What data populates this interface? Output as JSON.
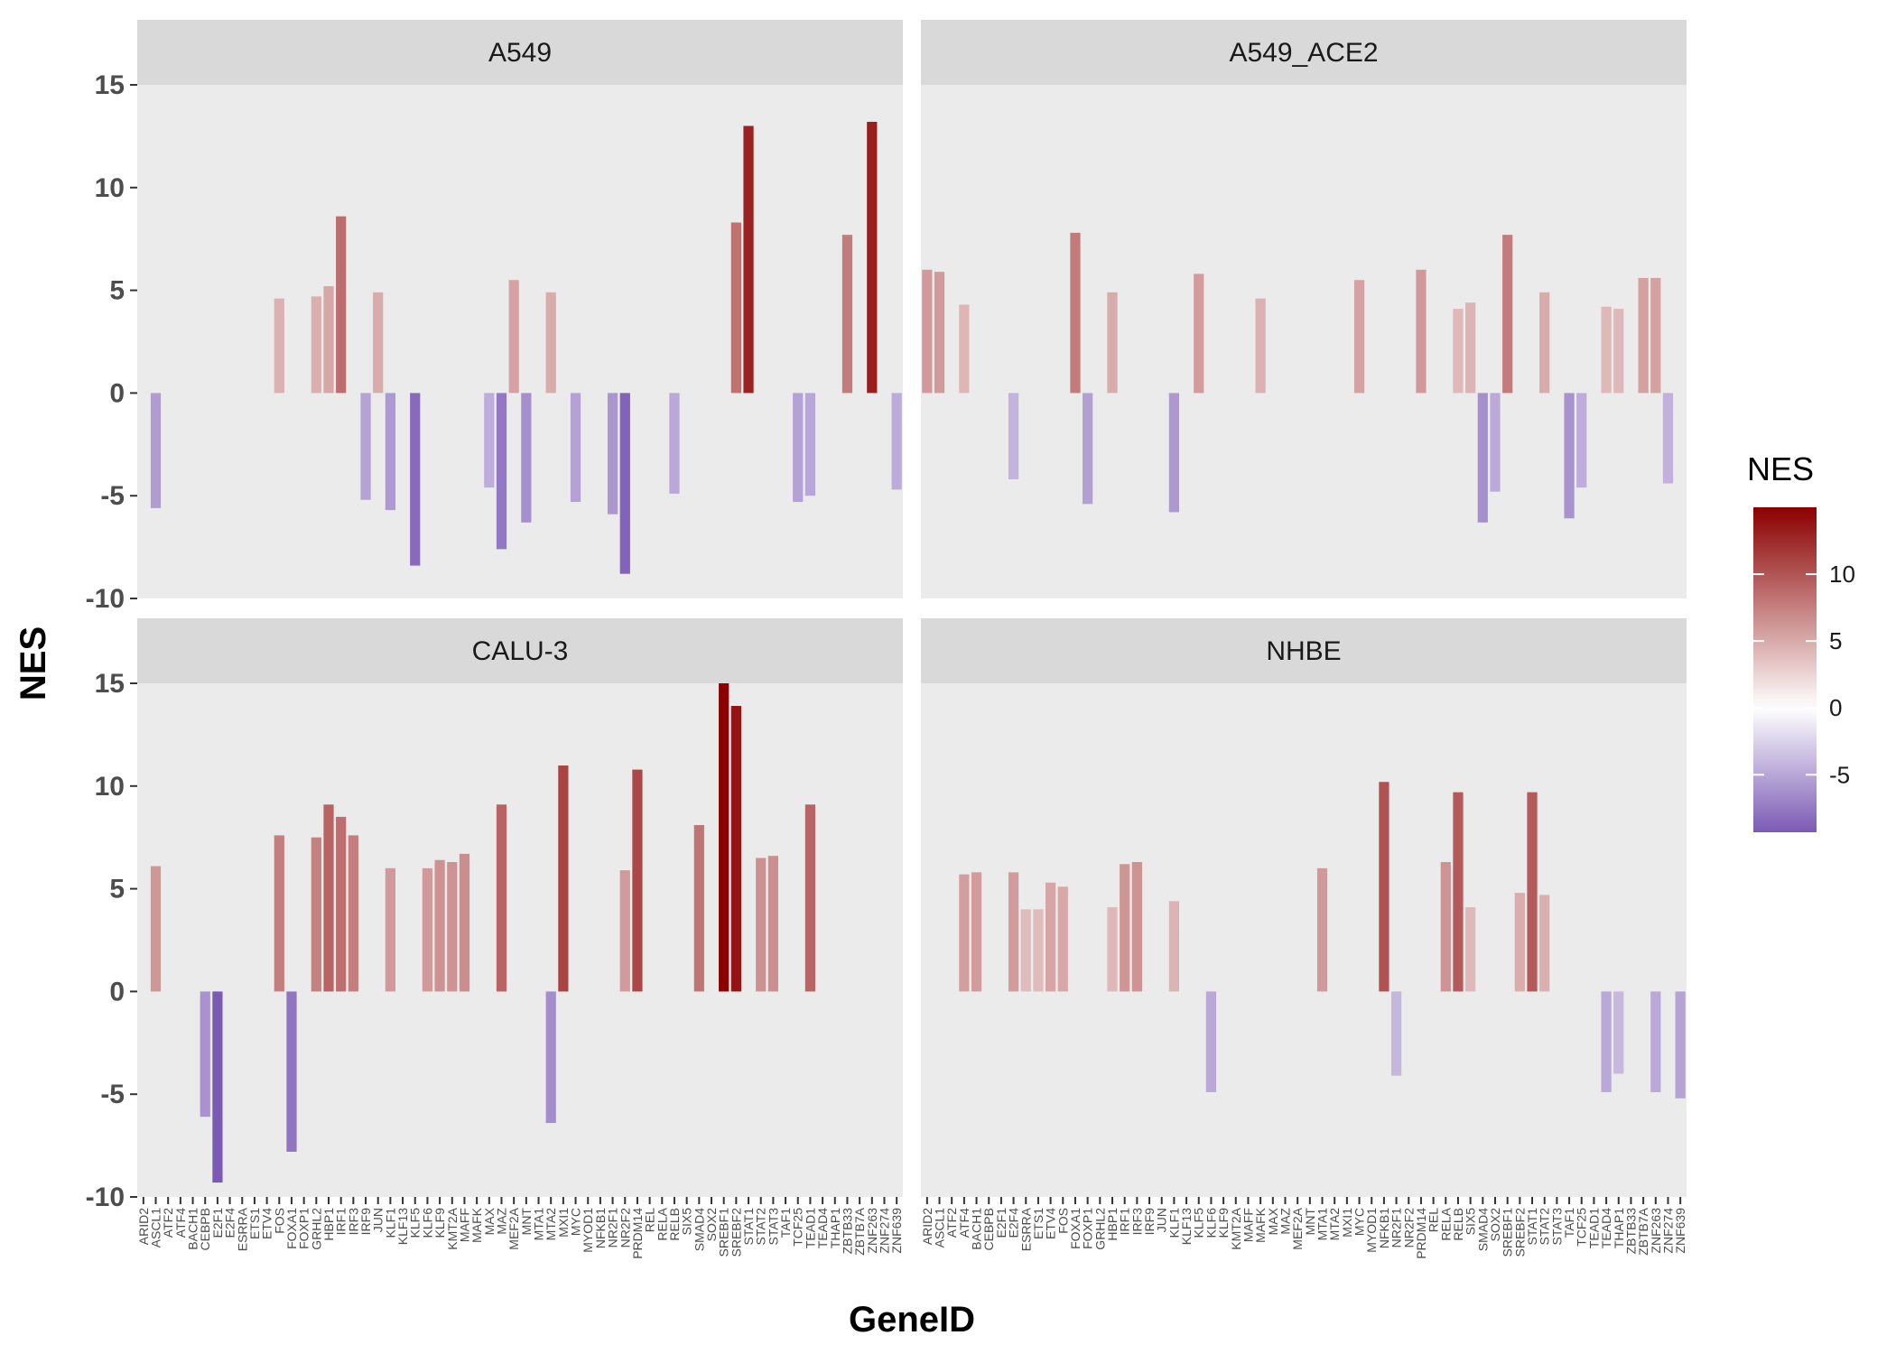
{
  "chart_data": {
    "type": "bar",
    "xlabel": "GeneID",
    "ylabel": "NES",
    "ylim": [
      -10,
      15
    ],
    "yticks": [
      15,
      10,
      5,
      0,
      -5,
      -10
    ],
    "ytick_labels": [
      "15",
      "10",
      "5",
      "0",
      "-5",
      "-10"
    ],
    "grid": false,
    "categories": [
      "ARID2",
      "ASCL1",
      "ATF2",
      "ATF4",
      "BACH1",
      "CEBPB",
      "E2F1",
      "E2F4",
      "ESRRA",
      "ETS1",
      "ETV4",
      "FOS",
      "FOXA1",
      "FOXP1",
      "GRHL2",
      "HBP1",
      "IRF1",
      "IRF3",
      "IRF9",
      "JUN",
      "KLF1",
      "KLF13",
      "KLF5",
      "KLF6",
      "KLF9",
      "KMT2A",
      "MAFF",
      "MAFK",
      "MAX",
      "MAZ",
      "MEF2A",
      "MNT",
      "MTA1",
      "MTA2",
      "MXI1",
      "MYC",
      "MYOD1",
      "NFKB1",
      "NR2F1",
      "NR2F2",
      "PRDM14",
      "REL",
      "RELA",
      "RELB",
      "SIX5",
      "SMAD4",
      "SOX2",
      "SREBF1",
      "SREBF2",
      "STAT1",
      "STAT2",
      "STAT3",
      "TAF1",
      "TCF25",
      "TEAD1",
      "TEAD4",
      "THAP1",
      "ZBTB33",
      "ZBTB7A",
      "ZNF263",
      "ZNF274",
      "ZNF639"
    ],
    "facets": [
      {
        "name": "A549",
        "values": {
          "ASCL1": -5.6,
          "FOS": 4.6,
          "GRHL2": 4.7,
          "HBP1": 5.2,
          "IRF1": 8.6,
          "IRF9": -5.2,
          "JUN": 4.9,
          "KLF1": -5.7,
          "KLF5": -8.4,
          "MAX": -4.6,
          "MAZ": -7.6,
          "MEF2A": 5.5,
          "MNT": -6.3,
          "MTA2": 4.9,
          "MYC": -5.3,
          "NR2F1": -5.9,
          "NR2F2": -8.8,
          "RELB": -4.9,
          "SREBF2": 8.3,
          "STAT1": 13.0,
          "TCF25": -5.3,
          "TEAD1": -5.0,
          "ZBTB33": 7.7,
          "ZNF263": 13.2,
          "ZNF639": -4.7
        }
      },
      {
        "name": "A549_ACE2",
        "values": {
          "ARID2": 6.0,
          "ASCL1": 5.9,
          "ATF4": 4.3,
          "E2F4": -4.2,
          "FOXA1": 7.8,
          "FOXP1": -5.4,
          "HBP1": 4.9,
          "KLF1": -5.8,
          "KLF5": 5.8,
          "MAFK": 4.6,
          "MYC": 5.5,
          "PRDM14": 6.0,
          "RELB": 4.1,
          "SIX5": 4.4,
          "SMAD4": -6.3,
          "SOX2": -4.8,
          "SREBF1": 7.7,
          "STAT2": 4.9,
          "TAF1": -6.1,
          "TCF25": -4.6,
          "TEAD4": 4.2,
          "THAP1": 4.1,
          "ZBTB7A": 5.6,
          "ZNF263": 5.6,
          "ZNF274": -4.4
        }
      },
      {
        "name": "CALU-3",
        "values": {
          "ASCL1": 6.1,
          "CEBPB": -6.1,
          "E2F1": -9.3,
          "FOS": 7.6,
          "FOXA1": -7.8,
          "GRHL2": 7.5,
          "HBP1": 9.1,
          "IRF1": 8.5,
          "IRF3": 7.6,
          "KLF1": 6.0,
          "KLF6": 6.0,
          "KLF9": 6.4,
          "KMT2A": 6.3,
          "MAFF": 6.7,
          "MAZ": 9.1,
          "MTA2": -6.4,
          "MXI1": 11.0,
          "NR2F2": 5.9,
          "PRDM14": 10.8,
          "SMAD4": 8.1,
          "SREBF1": 15.0,
          "SREBF2": 13.9,
          "STAT2": 6.5,
          "STAT3": 6.6,
          "TEAD1": 9.1
        }
      },
      {
        "name": "NHBE",
        "values": {
          "ATF4": 5.7,
          "BACH1": 5.8,
          "E2F4": 5.8,
          "ESRRA": 4.0,
          "ETS1": 4.0,
          "ETV4": 5.3,
          "FOS": 5.1,
          "HBP1": 4.1,
          "IRF1": 6.2,
          "IRF3": 6.3,
          "KLF1": 4.4,
          "KLF6": -4.9,
          "MTA1": 6.0,
          "NFKB1": 10.2,
          "NR2F1": -4.1,
          "RELA": 6.3,
          "RELB": 9.7,
          "SIX5": 4.1,
          "SREBF2": 4.8,
          "STAT1": 9.7,
          "STAT2": 4.7,
          "TEAD4": -4.9,
          "THAP1": -4.0,
          "ZNF263": -4.9,
          "ZNF639": -5.2
        }
      }
    ],
    "legend": {
      "title": "NES",
      "position": "right",
      "ticks": [
        10,
        5,
        0,
        -5
      ],
      "tick_labels": [
        "10",
        "5",
        "0",
        "-5"
      ],
      "range": [
        -9.3,
        15.0
      ]
    },
    "colors": {
      "low": "#7b5ab5",
      "mid": "#ffffff",
      "high": "#8b0000",
      "panel_bg": "#ebebeb",
      "strip_bg": "#d9d9d9"
    }
  }
}
